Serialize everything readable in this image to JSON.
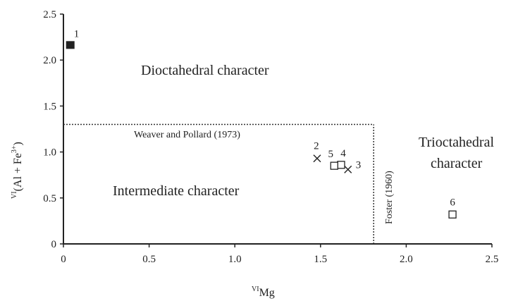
{
  "chart_data": {
    "type": "scatter",
    "xlabel_sup": "VI",
    "xlabel_main": "Mg",
    "ylabel_sup": "VI",
    "ylabel_main": "(Al + Fe",
    "ylabel_sup2": "3+",
    "ylabel_end": ")",
    "xlim": [
      0,
      2.5
    ],
    "ylim": [
      0,
      2.5
    ],
    "xticks": [
      "0",
      "0.5",
      "1.0",
      "1.5",
      "2.0",
      "2.5"
    ],
    "xtick_values": [
      0,
      0.5,
      1.0,
      1.5,
      2.0,
      2.5
    ],
    "yticks": [
      "0",
      "0.5",
      "1.0",
      "1.5",
      "2.0",
      "2.5"
    ],
    "ytick_values": [
      0,
      0.5,
      1.0,
      1.5,
      2.0,
      2.5
    ],
    "grid": false,
    "points": [
      {
        "label": "1",
        "x": 0.04,
        "y": 2.16,
        "marker": "filled-square"
      },
      {
        "label": "2",
        "x": 1.48,
        "y": 0.93,
        "marker": "cross"
      },
      {
        "label": "3",
        "x": 1.66,
        "y": 0.81,
        "marker": "cross"
      },
      {
        "label": "4",
        "x": 1.62,
        "y": 0.86,
        "marker": "open-square"
      },
      {
        "label": "5",
        "x": 1.58,
        "y": 0.85,
        "marker": "open-square"
      },
      {
        "label": "6",
        "x": 2.27,
        "y": 0.32,
        "marker": "open-square"
      }
    ],
    "boundaries": [
      {
        "label": "Weaver and Pollard (1973)",
        "y": 1.3,
        "x_from": 0,
        "x_to": 1.81
      },
      {
        "label": "Foster (1960)",
        "x": 1.81,
        "y_from": 0,
        "y_to": 1.3
      }
    ],
    "regions": {
      "dioctahedral": "Dioctahedral character",
      "intermediate": "Intermediate character",
      "trioctahedral_line1": "Trioctahedral",
      "trioctahedral_line2": "character"
    },
    "colors": {
      "axis": "#222222",
      "marker": "#222222"
    }
  }
}
